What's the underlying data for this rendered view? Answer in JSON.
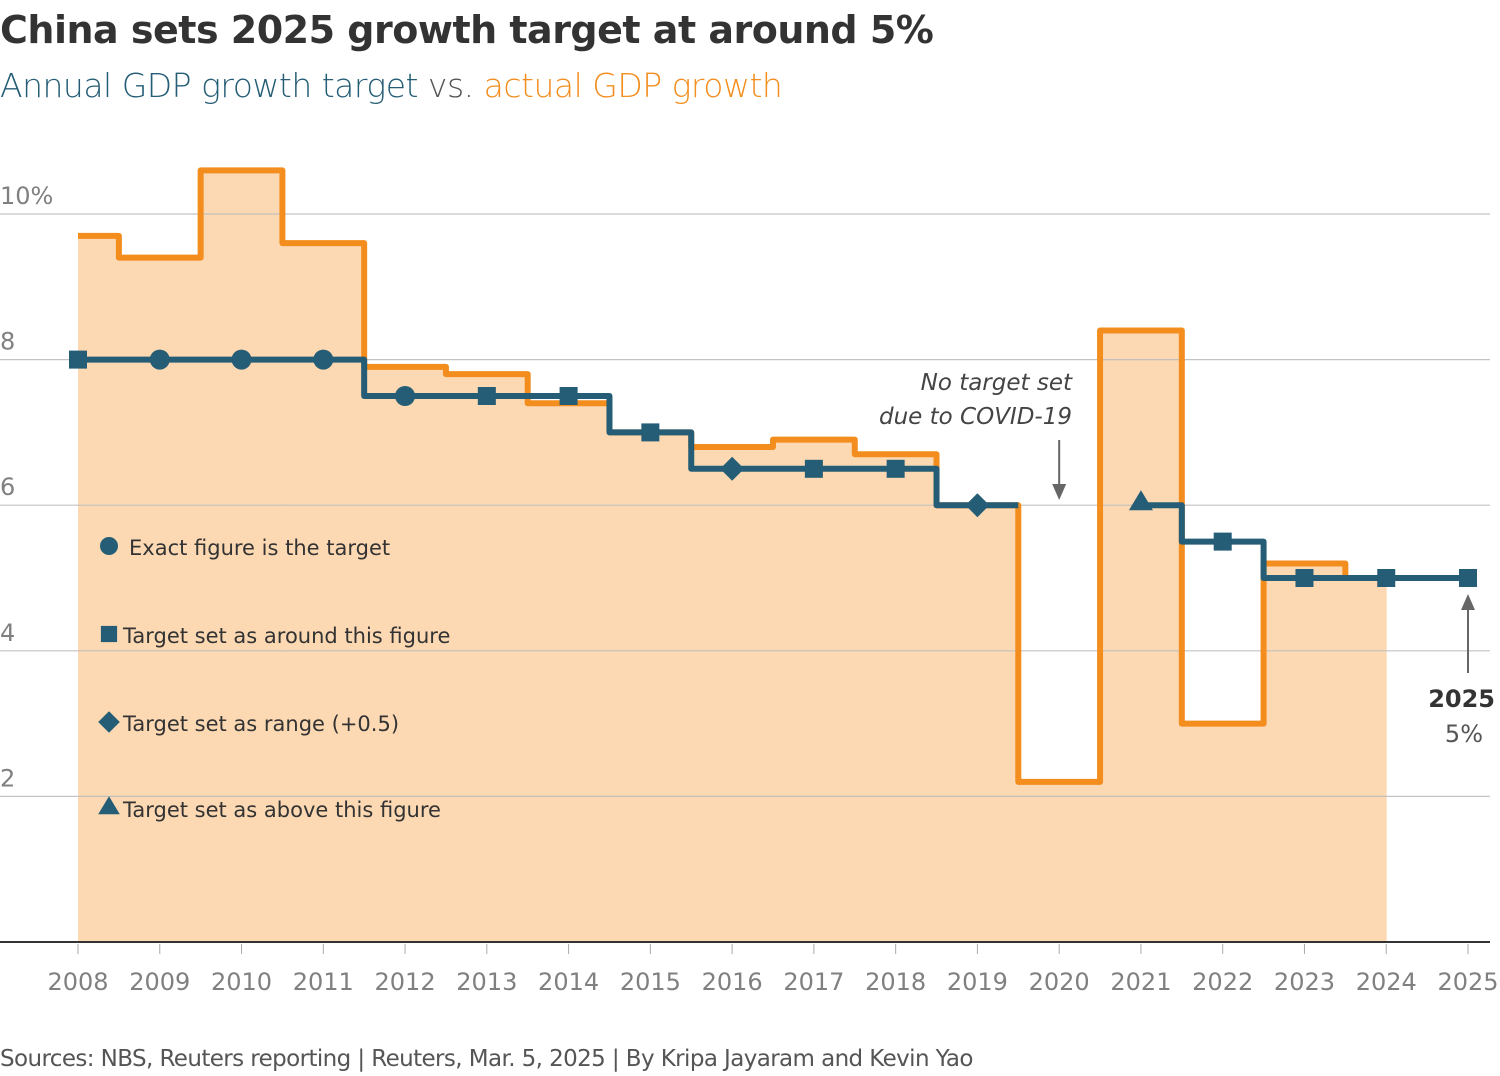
{
  "header": {
    "title": "China sets 2025 growth target at around 5%",
    "subtitle_target": "Annual GDP growth target",
    "subtitle_vs": " vs. ",
    "subtitle_actual": "actual GDP growth"
  },
  "footer": {
    "text": "Sources: NBS, Reuters reporting | Reuters, Mar. 5, 2025 | By Kripa Jayaram and Kevin Yao"
  },
  "colors": {
    "target": "#245d75",
    "actual": "#f28d1e",
    "actual_fill": "#fcd9b3",
    "grid": "#bdbdbd",
    "axis": "#333333",
    "annotation_arrow": "#666666"
  },
  "chart_data": {
    "type": "line",
    "title": "China sets 2025 growth target at around 5%",
    "subtitle": "Annual GDP growth target vs. actual GDP growth",
    "xlabel": "",
    "ylabel": "",
    "x": [
      2008,
      2009,
      2010,
      2011,
      2012,
      2013,
      2014,
      2015,
      2016,
      2017,
      2018,
      2019,
      2020,
      2021,
      2022,
      2023,
      2024,
      2025
    ],
    "x_tick_labels": [
      "2008",
      "2009",
      "2010",
      "2011",
      "2012",
      "2013",
      "2014",
      "2015",
      "2016",
      "2017",
      "2018",
      "2019",
      "2020",
      "2021",
      "2022",
      "2023",
      "2024",
      "2025"
    ],
    "y_ticks": [
      2,
      4,
      6,
      8,
      10
    ],
    "y_tick_labels": [
      "2",
      "4",
      "6",
      "8",
      "10%"
    ],
    "ylim": [
      0,
      11
    ],
    "grid": true,
    "series": [
      {
        "name": "actual GDP growth",
        "style": "step-area",
        "values": [
          9.7,
          9.4,
          10.6,
          9.6,
          7.9,
          7.8,
          7.4,
          7.0,
          6.8,
          6.9,
          6.7,
          6.0,
          2.2,
          8.4,
          3.0,
          5.2,
          5.0,
          null
        ]
      },
      {
        "name": "Annual GDP growth target",
        "style": "step-line-markers",
        "values": [
          8.0,
          8.0,
          8.0,
          8.0,
          7.5,
          7.5,
          7.5,
          7.0,
          6.5,
          6.5,
          6.5,
          6.0,
          null,
          6.0,
          5.5,
          5.0,
          5.0,
          5.0
        ],
        "markers": [
          "square",
          "circle",
          "circle",
          "circle",
          "circle",
          "square",
          "square",
          "square",
          "diamond",
          "square",
          "square",
          "diamond",
          null,
          "triangle",
          "square",
          "square",
          "square",
          "square"
        ]
      }
    ],
    "legend": {
      "placement": "left-inside",
      "items": [
        {
          "marker": "circle",
          "label": "Exact figure is the target"
        },
        {
          "marker": "square",
          "label": "Target set as around this figure"
        },
        {
          "marker": "diamond",
          "label": "Target set as range (+0.5)"
        },
        {
          "marker": "triangle",
          "label": "Target set as above this figure"
        }
      ]
    },
    "annotations": [
      {
        "x": 2020,
        "lines": [
          "No target set",
          "due to COVID-19"
        ],
        "arrow": "down"
      },
      {
        "x": 2025,
        "year_label": "2025",
        "value_label": "5%",
        "arrow": "up"
      }
    ]
  }
}
